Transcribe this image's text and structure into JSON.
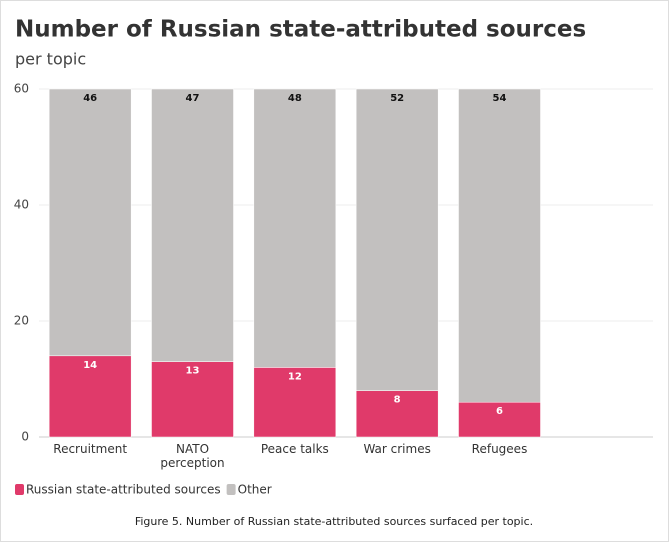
{
  "chart_data": {
    "type": "stacked-bar",
    "title": "Number of Russian state-attributed sources",
    "subtitle": "per topic",
    "categories": [
      "Recruitment",
      "NATO perception",
      "Peace talks",
      "War crimes",
      "Refugees",
      null
    ],
    "series": [
      {
        "name": "Russian state-attributed sources",
        "color": "#e03a6a",
        "values": [
          14,
          13,
          12,
          8,
          6,
          null
        ]
      },
      {
        "name": "Other",
        "color": "#c2c0bf",
        "values": [
          46,
          47,
          48,
          52,
          54,
          null
        ]
      }
    ],
    "ylim": [
      0,
      60
    ],
    "yticks": [
      0,
      20,
      40,
      60
    ],
    "grid": true,
    "legend": "bottom-left",
    "caption": "Figure 5. Number of Russian state-attributed sources surfaced per topic."
  }
}
